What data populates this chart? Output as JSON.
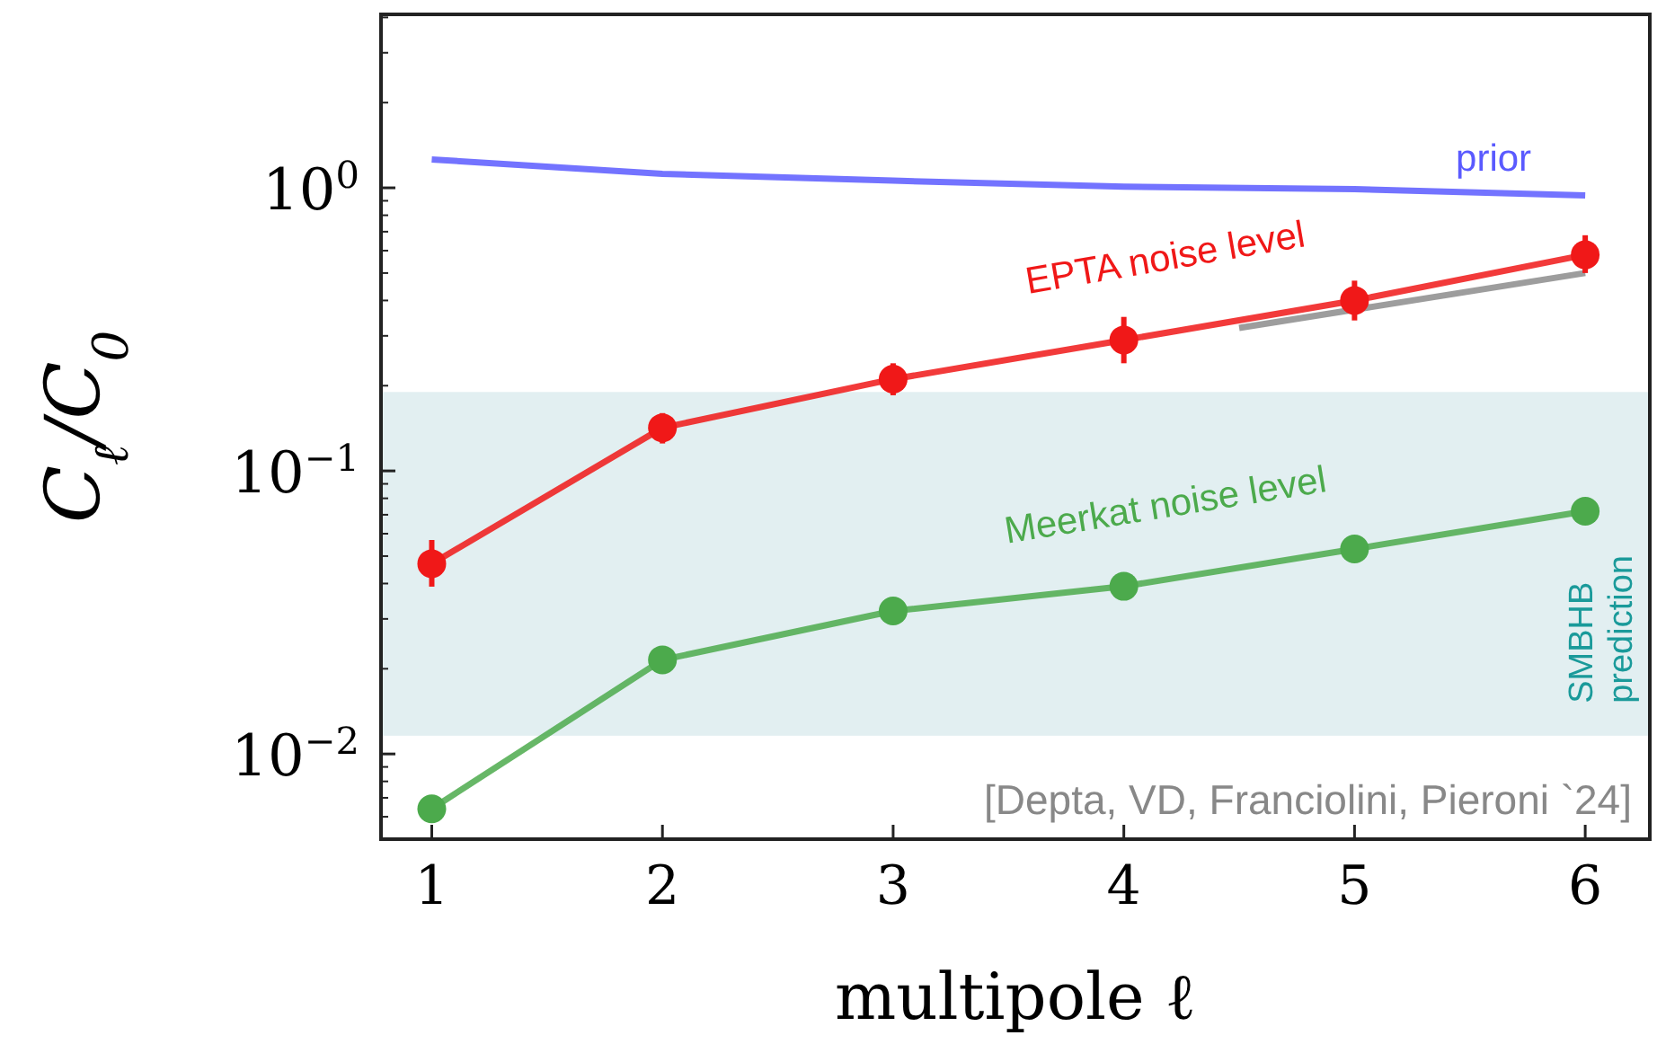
{
  "chart_data": {
    "type": "line",
    "xlabel": "multipole ℓ",
    "ylabel": "C$_{ℓ}$/C$_{0}$",
    "x": [
      1,
      2,
      3,
      4,
      5,
      6
    ],
    "series": [
      {
        "name": "prior",
        "color": "#5a5aff",
        "values": [
          1.26,
          1.12,
          1.06,
          1.01,
          0.99,
          0.94
        ],
        "marker": "none"
      },
      {
        "color": "#8c8c8c",
        "x": [
          4.5,
          6
        ],
        "values": [
          0.32,
          0.5
        ],
        "marker": "none"
      },
      {
        "name": "EPTA noise level",
        "color": "#f01818",
        "values": [
          0.047,
          0.142,
          0.211,
          0.29,
          0.4,
          0.58
        ],
        "errors": [
          [
            0.039,
            0.057
          ],
          [
            0.125,
            0.16
          ],
          [
            0.185,
            0.24
          ],
          [
            0.24,
            0.35
          ],
          [
            0.34,
            0.47
          ],
          [
            0.5,
            0.68
          ]
        ],
        "marker": "circle"
      },
      {
        "name": "Meerkat noise level",
        "color": "#4caa4c",
        "values": [
          0.0064,
          0.0215,
          0.032,
          0.0391,
          0.053,
          0.072
        ],
        "marker": "circle"
      }
    ],
    "log": "y",
    "xlim": [
      0.78,
      6.28
    ],
    "ylim": [
      0.005,
      4.1
    ],
    "xticks": [
      1,
      2,
      3,
      4,
      5,
      6
    ],
    "yticks": [
      {
        "value": 0.01,
        "label": "10$^{−2}$"
      },
      {
        "value": 0.1,
        "label": "10$^{−1}$"
      },
      {
        "value": 1,
        "label": "10$^{0}$"
      }
    ],
    "bands": [
      {
        "axis": "y",
        "from": 0.0116,
        "to": 0.19,
        "label": "SMBHB prediction",
        "color": "#e2eff1"
      }
    ],
    "annotations": [
      "[Depta, VD, Franciolini, Pieroni `24]"
    ],
    "grid": false,
    "line_style": "solid"
  }
}
